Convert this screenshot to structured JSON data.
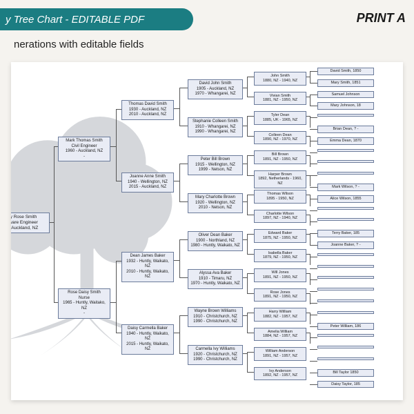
{
  "header": {
    "title": "y Tree Chart - EDITABLE PDF",
    "print": "PRINT A",
    "subtitle": "nerations with editable fields"
  },
  "colors": {
    "accent": "#1b7d82",
    "box_bg": "#e9ecf5",
    "box_border": "#6a7a9a",
    "page_bg": "#f5f3ef",
    "chart_bg": "#ffffff"
  },
  "gen1": [
    {
      "l1": "y Rose Smith",
      "l2": "",
      "l3": "ware Engineer",
      "l4": "- Auckland, NZ"
    }
  ],
  "gen2": [
    {
      "l1": "Mark Thomas Smith",
      "l2": "Civil Engineer",
      "l3": "1960 - Auckland, NZ",
      "l4": "-"
    },
    {
      "l1": "Rose Daisy Smith",
      "l2": "Nurse",
      "l3": "1965 - Huntly, Waitako, NZ",
      "l4": "-"
    }
  ],
  "gen3": [
    {
      "l1": "Thomas David Smith",
      "l2": "1930 - Auckland, NZ",
      "l3": "2010 - Auckland, NZ"
    },
    {
      "l1": "Joanne Anne Smith",
      "l2": "1940 - Wellington, NZ",
      "l3": "2015 - Auckland, NZ"
    },
    {
      "l1": "Dean James Baker",
      "l2": "1932 - Huntly, Waikato, NZ",
      "l3": "2010 - Huntly, Waikato, NZ"
    },
    {
      "l1": "Daisy Carmella Baker",
      "l2": "1940 - Huntly, Waikato, NZ",
      "l3": "2015 - Huntly, Waikato, NZ"
    }
  ],
  "gen4": [
    {
      "l1": "David John Smith",
      "l2": "1905 - Auckland, NZ",
      "l3": "1970 - Whangarei, NZ"
    },
    {
      "l1": "Stephanie Colleen Smith",
      "l2": "1910 - Whangarei, NZ",
      "l3": "1990 - Whangarei, NZ"
    },
    {
      "l1": "Peter Bill Brown",
      "l2": "1915 - Wellington, NZ",
      "l3": "1999 - Nelson, NZ"
    },
    {
      "l1": "Mary Charlotte Brown",
      "l2": "1920 - Wellington, NZ",
      "l3": "2010 - Nelson, NZ"
    },
    {
      "l1": "Oliver Dean Baker",
      "l2": "1900 - Northland, NZ",
      "l3": "1980 - Huntly, Waikato, NZ"
    },
    {
      "l1": "Alyssa Ava Baker",
      "l2": "1910 - Timaru, NZ",
      "l3": "1970 - Huntly, Waikato, NZ"
    },
    {
      "l1": "Wayne Brown Williams",
      "l2": "1910 - Christchurch, NZ",
      "l3": "1990 - Christchurch, NZ"
    },
    {
      "l1": "Carmella Ivy Williams",
      "l2": "1920 - Christchurch, NZ",
      "l3": "1990 - Christchurch, NZ"
    }
  ],
  "gen5": [
    {
      "l1": "John Smith",
      "l2": "1880, NZ - 1940, NZ"
    },
    {
      "l1": "Vivian Smith",
      "l2": "1881, NZ - 1950, NZ"
    },
    {
      "l1": "Tyler Dean",
      "l2": "1885, UK - 1965, NZ"
    },
    {
      "l1": "Colleen Dean",
      "l2": "1890, NZ - 1970, NZ"
    },
    {
      "l1": "Bill Brown",
      "l2": "1891, NZ - 1950, NZ"
    },
    {
      "l1": "Harper Brown",
      "l2": "1892, Netherlands - 1960, NZ"
    },
    {
      "l1": "Thomas Wilson",
      "l2": "1895 - 1950, NZ"
    },
    {
      "l1": "Charlotte Wilson",
      "l2": "1897, NZ - 1940, NZ"
    },
    {
      "l1": "Edward Baker",
      "l2": "1875, NZ - 1950, NZ"
    },
    {
      "l1": "Isabella Baker",
      "l2": "1879, NZ - 1950, NZ"
    },
    {
      "l1": "Will Jones",
      "l2": "1891, NZ - 1950, NZ"
    },
    {
      "l1": "Rose Jones",
      "l2": "1891, NZ - 1950, NZ"
    },
    {
      "l1": "Harry William",
      "l2": "1882, NZ - 1957, NZ"
    },
    {
      "l1": "Amelia William",
      "l2": "1884, NZ - 1957, NZ"
    },
    {
      "l1": "William Anderson",
      "l2": "1891, NZ - 1957, NZ"
    },
    {
      "l1": "Ivy Anderson",
      "l2": "1892, NZ - 1957, NZ"
    }
  ],
  "gen6": [
    "David Smith, 1850",
    "Mary Smith, 1851",
    "Samuel Johnson",
    "Mary Johnson, 18",
    "",
    "Brian Dean, ? -",
    "Emma Dean, 1870",
    "",
    "",
    "",
    "Mark Wilson, ? -",
    "Alice Wilson, 1855",
    "",
    "",
    "Terry Baker, 185",
    "Joanne Baker, ? -",
    "",
    "",
    "",
    "",
    "",
    "",
    "Peter William, 186",
    "",
    "",
    "",
    "Bill Taylor 1850",
    "Daisy Taylor, 185"
  ]
}
